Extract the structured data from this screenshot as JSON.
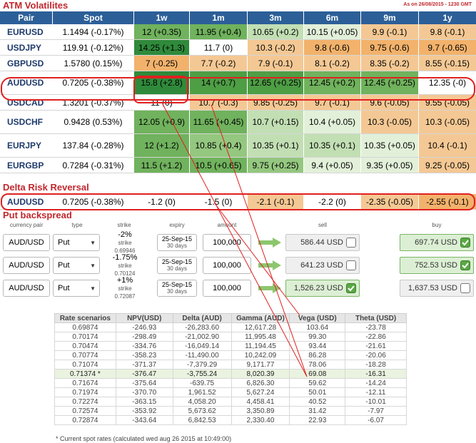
{
  "atm": {
    "title": "ATM Volatilites",
    "as_of": "As on 26/08/2015 - 1230 GMT",
    "headers": [
      "Pair",
      "Spot",
      "1w",
      "1m",
      "3m",
      "6m",
      "9m",
      "1y"
    ],
    "rows": [
      {
        "pair": "EURUSD",
        "spot": "1.1494 (-0.17%)",
        "cells": [
          "12 (+0.35)",
          "11.95 (+0.4)",
          "10.65 (+0.2)",
          "10.15 (+0.05)",
          "9.9 (-0.1)",
          "9.8 (-0.1)"
        ]
      },
      {
        "pair": "USDJPY",
        "spot": "119.91 (-0.12%)",
        "cells": [
          "14.25 (+1.3)",
          "11.7 (0)",
          "10.3 (-0.2)",
          "9.8 (-0.6)",
          "9.75 (-0.6)",
          "9.7 (-0.65)"
        ]
      },
      {
        "pair": "GBPUSD",
        "spot": "1.5780 (0.15%)",
        "cells": [
          "7 (-0.25)",
          "7.7 (-0.2)",
          "7.9 (-0.1)",
          "8.1 (-0.2)",
          "8.35 (-0.2)",
          "8.55 (-0.15)"
        ]
      },
      {
        "pair": "AUDUSD",
        "spot": "0.7205 (-0.38%)",
        "cells": [
          "15.8 (+2.8)",
          "14 (+0.7)",
          "12.65 (+0.25)",
          "12.45 (+0.2)",
          "12.45 (+0.25)",
          "12.35 (-0)"
        ]
      },
      {
        "pair": "USDCAD",
        "spot": "1.3201 (-0.37%)",
        "cells": [
          "11 (0)",
          "10.7 (-0.3)",
          "9.85 (-0.25)",
          "9.7 (-0.1)",
          "9.6 (-0.05)",
          "9.55 (-0.05)"
        ]
      },
      {
        "pair": "USDCHF",
        "spot": "0.9428 (0.53%)",
        "cells": [
          "12.05 (+0.9)",
          "11.65 (+0.45)",
          "10.7 (+0.15)",
          "10.4 (+0.05)",
          "10.3 (-0.05)",
          "10.3 (-0.05)"
        ]
      },
      {
        "pair": "EURJPY",
        "spot": "137.84 (-0.28%)",
        "cells": [
          "12 (+1.2)",
          "10.85 (+0.4)",
          "10.35 (+0.1)",
          "10.35 (+0.1)",
          "10.35 (+0.05)",
          "10.4 (-0.1)"
        ]
      },
      {
        "pair": "EURGBP",
        "spot": "0.7284 (-0.31%)",
        "cells": [
          "11.5 (+1.2)",
          "10.5 (+0.65)",
          "9.75 (+0.25)",
          "9.4 (+0.05)",
          "9.35 (+0.05)",
          "9.25 (-0.05)"
        ]
      }
    ]
  },
  "rr": {
    "title": "Delta Risk Reversal",
    "pair": "AUDUSD",
    "spot": "0.7205 (-0.38%)",
    "cells": [
      "-1.2 (0)",
      "-1.5 (0)",
      "-2.1 (-0.1)",
      "-2.2 (0)",
      "-2.35 (-0.05)",
      "-2.55 (-0.1)"
    ]
  },
  "pb": {
    "title": "Put backspread",
    "headers": {
      "pair": "currency pair",
      "type": "type",
      "strike": "strike",
      "expiry": "expiry",
      "amount": "amount",
      "sell": "sell",
      "buy": "buy"
    },
    "legs": [
      {
        "pair": "AUD/USD",
        "type": "Put",
        "strike_main": "-2%",
        "strike_sub": "strike 0.69946",
        "exp_main": "25-Sep-15",
        "exp_sub": "30 days",
        "amount": "100,000",
        "sell": "586.44 USD",
        "buy": "697.74 USD",
        "sell_checked": false,
        "buy_checked": true
      },
      {
        "pair": "AUD/USD",
        "type": "Put",
        "strike_main": "-1.75%",
        "strike_sub": "strike 0.70124",
        "exp_main": "25-Sep-15",
        "exp_sub": "30 days",
        "amount": "100,000",
        "sell": "641.23 USD",
        "buy": "752.53 USD",
        "sell_checked": false,
        "buy_checked": true
      },
      {
        "pair": "AUD/USD",
        "type": "Put",
        "strike_main": "+1%",
        "strike_sub": "strike 0.72087",
        "exp_main": "25-Sep-15",
        "exp_sub": "30 days",
        "amount": "100,000",
        "sell": "1,526.23 USD",
        "buy": "1,637.53 USD",
        "sell_checked": true,
        "buy_checked": false
      }
    ]
  },
  "rs": {
    "headers": [
      "Rate scenarios",
      "NPV(USD)",
      "Delta (AUD)",
      "Gamma (AUD)",
      "Vega (USD)",
      "Theta (USD)"
    ],
    "rows": [
      [
        "0.69874",
        "-246.93",
        "-26,283.60",
        "12,617.28",
        "103.64",
        "-23.78"
      ],
      [
        "0.70174",
        "-298.49",
        "-21,002.90",
        "11,995.48",
        "99.30",
        "-22.86"
      ],
      [
        "0.70474",
        "-334.76",
        "-16,049.14",
        "11,194.45",
        "93.44",
        "-21.61"
      ],
      [
        "0.70774",
        "-358.23",
        "-11,490.00",
        "10,242.09",
        "86.28",
        "-20.06"
      ],
      [
        "0.71074",
        "-371.37",
        "-7,379.29",
        "9,171.77",
        "78.06",
        "-18.28"
      ],
      [
        "0.71374 *",
        "-376.47",
        "-3,755.24",
        "8,020.39",
        "69.08",
        "-16.31"
      ],
      [
        "0.71674",
        "-375.64",
        "-639.75",
        "6,826.30",
        "59.62",
        "-14.24"
      ],
      [
        "0.71974",
        "-370.70",
        "1,961.52",
        "5,627.24",
        "50.01",
        "-12.11"
      ],
      [
        "0.72274",
        "-363.15",
        "4,058.20",
        "4,458.41",
        "40.52",
        "-10.01"
      ],
      [
        "0.72574",
        "-353.92",
        "5,673.62",
        "3,350.89",
        "31.42",
        "-7.97"
      ],
      [
        "0.72874",
        "-343.64",
        "6,842.53",
        "2,330.40",
        "22.93",
        "-6.07"
      ]
    ],
    "current_row": 5,
    "footnote": "* Current spot rates (calculated wed aug 26 2015 at 10:49:00)"
  },
  "colors": {
    "header_blue": "#2c5f98",
    "title_red": "#c0272d",
    "highlight_red": "#e02020",
    "green": "#4e9e45",
    "orange": "#f2b26c"
  }
}
